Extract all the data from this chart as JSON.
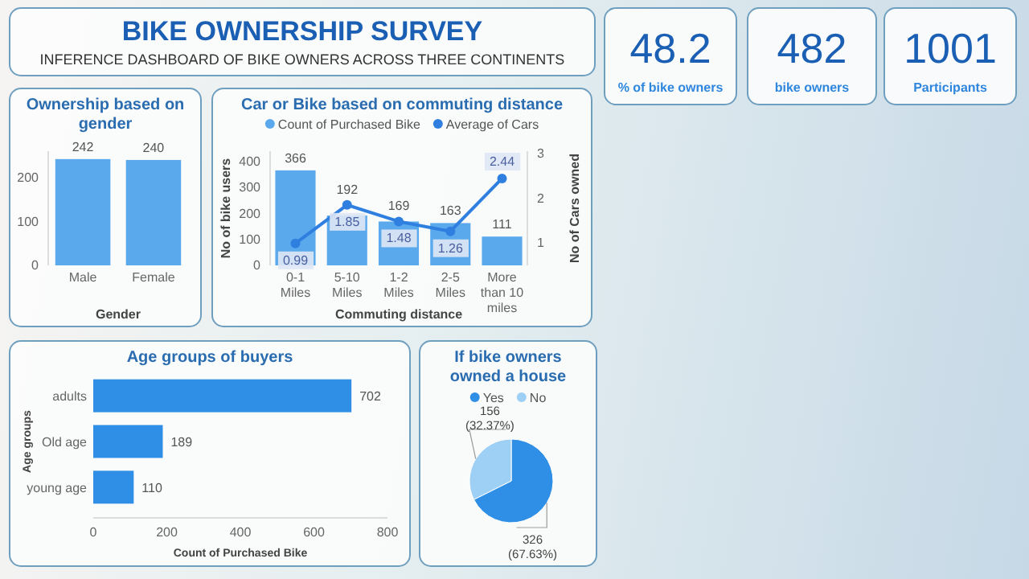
{
  "chart_data": [
    {
      "type": "other",
      "title": "BIKE OWNERSHIP SURVEY",
      "subtitle": "INFERENCE DASHBOARD OF BIKE OWNERS ACROSS THREE CONTINENTS"
    },
    {
      "type": "other",
      "categories": [
        "% of bike owners",
        "bike owners",
        "Participants"
      ],
      "values": [
        48.2,
        482,
        1001
      ],
      "data_labels": true
    },
    {
      "type": "bar",
      "title": "Ownership based on gender",
      "categories": [
        "Male",
        "Female"
      ],
      "values": [
        242,
        240
      ],
      "color": "#5aa9ec",
      "xlabel": "Gender",
      "ylim": [
        0,
        260
      ],
      "yticks": [
        0,
        100,
        200
      ],
      "data_labels": true
    },
    {
      "type": "bar",
      "title": "Car or Bike based on commuting distance",
      "categories": [
        "0-1 Miles",
        "5-10 Miles",
        "1-2 Miles",
        "2-5 Miles",
        "More than 10 miles"
      ],
      "series": [
        {
          "name": "Count of Purchased Bike",
          "type": "bar",
          "color": "#5aa9ec",
          "values": [
            366,
            192,
            169,
            163,
            111
          ]
        },
        {
          "name": "Average of Cars",
          "type": "line",
          "axis": "y2",
          "color": "#2f7fe0",
          "values": [
            0.99,
            1.85,
            1.48,
            1.26,
            2.44
          ]
        }
      ],
      "ylim": [
        0,
        440
      ],
      "yticks": [
        0,
        100,
        200,
        300,
        400
      ],
      "y2lim": [
        0.5,
        3.05
      ],
      "y2ticks": [
        1,
        2,
        3
      ],
      "xlabel": "Commuting distance",
      "ylabel": "No of bike users",
      "y2label": "No of Cars owned",
      "legend": "top",
      "marker": "circle",
      "data_labels": true
    },
    {
      "type": "bar",
      "orientation": "horizontal",
      "title": "Age groups of buyers",
      "categories": [
        "adults",
        "Old age",
        "young age"
      ],
      "values": [
        702,
        189,
        110
      ],
      "color": "#2f8fe6",
      "xlim": [
        0,
        800
      ],
      "xticks": [
        0,
        200,
        400,
        600,
        800
      ],
      "xlabel": "Count of Purchased Bike",
      "ylabel": "Age groups",
      "data_labels": true
    },
    {
      "type": "pie",
      "title": "If bike owners owned a house",
      "categories": [
        "Yes",
        "No"
      ],
      "values": [
        326,
        156
      ],
      "colors": [
        "#2f8fe6",
        "#9ecff5"
      ],
      "value_labels": [
        "326 (67.63%)",
        "156 (32.37%)"
      ],
      "legend": "top"
    }
  ]
}
